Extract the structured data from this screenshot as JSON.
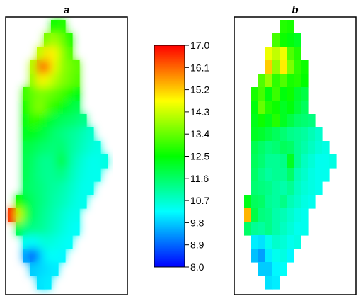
{
  "chart_data": {
    "type": "heatmap",
    "panels": [
      {
        "label": "a",
        "style": "smooth interpolated field",
        "values": [
          [
            null,
            null,
            null,
            null,
            null,
            null,
            null,
            12.7,
            12.8,
            null,
            null,
            null,
            null,
            null,
            null,
            null,
            null
          ],
          [
            null,
            null,
            null,
            null,
            null,
            null,
            13.6,
            14.0,
            13.5,
            12.8,
            null,
            null,
            null,
            null,
            null,
            null,
            null
          ],
          [
            null,
            null,
            null,
            null,
            null,
            14.2,
            15.0,
            14.8,
            13.9,
            13.2,
            null,
            null,
            null,
            null,
            null,
            null,
            null
          ],
          [
            null,
            null,
            null,
            null,
            14.1,
            16.2,
            15.8,
            14.6,
            13.8,
            13.6,
            13.3,
            null,
            null,
            null,
            null,
            null,
            null
          ],
          [
            null,
            null,
            null,
            null,
            13.8,
            14.9,
            14.5,
            14.1,
            13.7,
            13.5,
            13.2,
            null,
            null,
            null,
            null,
            null,
            null
          ],
          [
            null,
            null,
            null,
            13.0,
            13.4,
            13.6,
            13.5,
            13.3,
            13.1,
            12.7,
            12.4,
            null,
            null,
            null,
            null,
            null,
            null
          ],
          [
            null,
            null,
            null,
            12.6,
            13.4,
            13.7,
            13.1,
            12.8,
            12.5,
            12.1,
            11.8,
            null,
            null,
            null,
            null,
            null,
            null
          ],
          [
            null,
            null,
            null,
            12.4,
            12.9,
            12.7,
            12.2,
            11.9,
            11.7,
            11.6,
            11.5,
            11.3,
            null,
            null,
            null,
            null,
            null
          ],
          [
            null,
            null,
            null,
            12.2,
            12.3,
            12.0,
            11.8,
            11.5,
            11.4,
            11.2,
            11.1,
            10.9,
            10.7,
            null,
            null,
            null,
            null
          ],
          [
            null,
            null,
            null,
            11.9,
            11.8,
            11.6,
            11.5,
            11.4,
            11.6,
            11.2,
            11.0,
            10.8,
            10.6,
            10.5,
            null,
            null,
            null
          ],
          [
            null,
            null,
            null,
            11.8,
            11.6,
            11.3,
            11.2,
            11.3,
            12.4,
            11.2,
            10.8,
            10.6,
            10.4,
            10.4,
            10.5,
            null,
            null
          ],
          [
            null,
            null,
            null,
            11.8,
            11.5,
            11.3,
            11.2,
            11.2,
            11.4,
            11.0,
            10.7,
            10.5,
            10.4,
            10.4,
            null,
            null,
            null
          ],
          [
            null,
            null,
            null,
            11.7,
            11.5,
            11.4,
            11.2,
            11.1,
            11.0,
            10.8,
            10.6,
            10.4,
            10.4,
            null,
            null,
            null,
            null
          ],
          [
            null,
            null,
            12.6,
            12.0,
            11.6,
            11.4,
            11.2,
            11.0,
            10.9,
            10.7,
            10.5,
            10.4,
            null,
            null,
            null,
            null,
            null
          ],
          [
            null,
            16.7,
            14.3,
            12.2,
            11.6,
            11.3,
            11.1,
            10.9,
            10.7,
            10.5,
            10.4,
            null,
            null,
            null,
            null,
            null,
            null
          ],
          [
            null,
            null,
            11.8,
            11.4,
            11.3,
            11.2,
            11.0,
            10.8,
            10.6,
            10.4,
            10.3,
            null,
            null,
            null,
            null,
            null,
            null
          ],
          [
            null,
            null,
            null,
            10.4,
            10.2,
            10.5,
            10.6,
            10.5,
            10.4,
            10.3,
            null,
            null,
            null,
            null,
            null,
            null,
            null
          ],
          [
            null,
            null,
            null,
            9.5,
            8.3,
            9.8,
            10.3,
            10.3,
            10.2,
            null,
            null,
            null,
            null,
            null,
            null,
            null,
            null
          ],
          [
            null,
            null,
            null,
            null,
            9.8,
            9.9,
            10.0,
            10.1,
            null,
            null,
            null,
            null,
            null,
            null,
            null,
            null,
            null
          ],
          [
            null,
            null,
            null,
            null,
            null,
            10.0,
            10.1,
            null,
            null,
            null,
            null,
            null,
            null,
            null,
            null,
            null,
            null
          ]
        ]
      },
      {
        "label": "b",
        "style": "blocky grid",
        "values": [
          [
            null,
            null,
            null,
            null,
            null,
            null,
            null,
            12.8,
            12.7,
            null,
            null,
            null,
            null,
            null,
            null,
            null,
            null
          ],
          [
            null,
            null,
            null,
            null,
            null,
            null,
            13.1,
            12.6,
            12.4,
            12.2,
            null,
            null,
            null,
            null,
            null,
            null,
            null
          ],
          [
            null,
            null,
            null,
            null,
            null,
            14.6,
            14.2,
            14.6,
            13.2,
            12.8,
            null,
            null,
            null,
            null,
            null,
            null,
            null
          ],
          [
            null,
            null,
            null,
            null,
            null,
            15.2,
            13.8,
            14.9,
            13.6,
            12.9,
            12.6,
            null,
            null,
            null,
            null,
            null,
            null
          ],
          [
            null,
            null,
            null,
            null,
            13.2,
            13.8,
            12.9,
            13.2,
            12.7,
            12.8,
            12.5,
            null,
            null,
            null,
            null,
            null,
            null
          ],
          [
            null,
            null,
            null,
            12.7,
            13.1,
            12.4,
            13.0,
            12.4,
            12.6,
            12.1,
            11.9,
            null,
            null,
            null,
            null,
            null,
            null
          ],
          [
            null,
            null,
            null,
            12.4,
            13.4,
            12.8,
            12.6,
            12.2,
            12.4,
            12.0,
            11.7,
            null,
            null,
            null,
            null,
            null,
            null
          ],
          [
            null,
            null,
            null,
            12.3,
            12.6,
            12.3,
            12.8,
            12.2,
            11.9,
            11.6,
            11.5,
            11.4,
            null,
            null,
            null,
            null,
            null
          ],
          [
            null,
            null,
            null,
            12.2,
            12.1,
            11.9,
            11.7,
            11.5,
            11.3,
            11.2,
            11.1,
            10.9,
            10.7,
            null,
            null,
            null,
            null
          ],
          [
            null,
            null,
            null,
            11.8,
            11.6,
            11.4,
            11.5,
            11.7,
            11.6,
            11.2,
            11.0,
            10.8,
            10.6,
            10.5,
            null,
            null,
            null
          ],
          [
            null,
            null,
            null,
            11.7,
            11.5,
            11.2,
            11.2,
            11.3,
            12.2,
            11.2,
            10.8,
            10.6,
            10.4,
            10.4,
            10.5,
            null,
            null
          ],
          [
            null,
            null,
            null,
            11.6,
            11.3,
            11.1,
            11.2,
            11.2,
            11.6,
            10.9,
            10.7,
            10.5,
            10.4,
            10.4,
            null,
            null,
            null
          ],
          [
            null,
            null,
            null,
            11.5,
            11.4,
            11.3,
            11.1,
            11.0,
            11.2,
            10.8,
            10.6,
            10.5,
            10.4,
            null,
            null,
            null,
            null
          ],
          [
            null,
            null,
            12.3,
            11.7,
            11.6,
            11.2,
            11.1,
            11.3,
            10.9,
            10.7,
            10.5,
            10.4,
            null,
            null,
            null,
            null,
            null
          ],
          [
            null,
            null,
            15.4,
            11.9,
            11.4,
            11.3,
            11.0,
            10.9,
            10.7,
            10.5,
            10.4,
            null,
            null,
            null,
            null,
            null,
            null
          ],
          [
            null,
            null,
            11.6,
            11.2,
            11.1,
            11.3,
            11.0,
            10.8,
            10.6,
            10.4,
            10.4,
            null,
            null,
            null,
            null,
            null,
            null
          ],
          [
            null,
            null,
            null,
            10.1,
            10.0,
            10.4,
            10.7,
            10.6,
            10.4,
            10.5,
            null,
            null,
            null,
            null,
            null,
            null,
            null
          ],
          [
            null,
            null,
            null,
            9.7,
            9.4,
            10.1,
            10.4,
            10.5,
            10.2,
            null,
            null,
            null,
            null,
            null,
            null,
            null,
            null
          ],
          [
            null,
            null,
            null,
            null,
            9.8,
            9.8,
            10.2,
            10.3,
            null,
            null,
            null,
            null,
            null,
            null,
            null,
            null,
            null
          ],
          [
            null,
            null,
            null,
            null,
            null,
            10.0,
            10.1,
            null,
            null,
            null,
            null,
            null,
            null,
            null,
            null,
            null,
            null
          ]
        ]
      }
    ],
    "colorbar": {
      "min": 8.0,
      "max": 17.0,
      "ticks": [
        "17.0",
        "16.1",
        "15.2",
        "14.3",
        "13.4",
        "12.5",
        "11.6",
        "10.7",
        "9.8",
        "8.9",
        "8.0"
      ],
      "colormap": [
        "#0000ff",
        "#00ffff",
        "#00ff00",
        "#ffff00",
        "#ff0000"
      ]
    }
  }
}
